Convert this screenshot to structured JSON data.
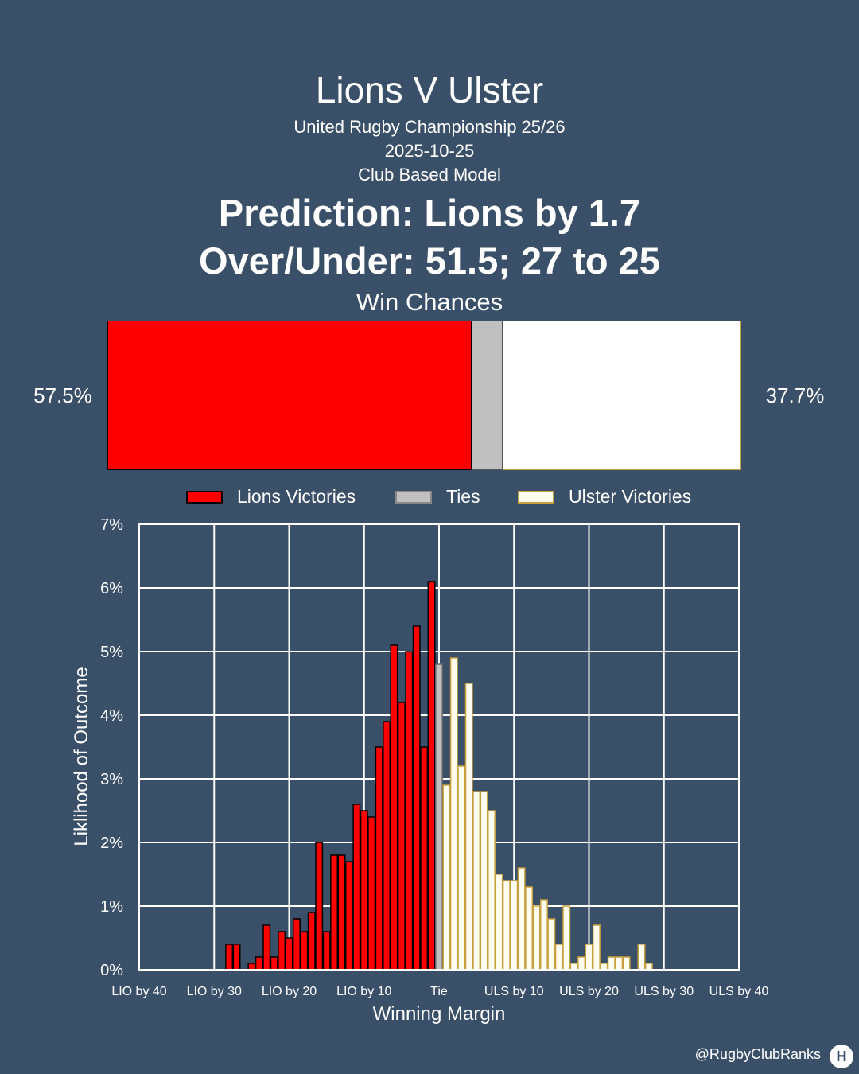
{
  "header": {
    "title": "Lions V Ulster",
    "competition": "United Rugby Championship 25/26",
    "date": "2025-10-25",
    "model": "Club Based Model",
    "prediction": "Prediction: Lions by 1.7",
    "over_under": "Over/Under: 51.5; 27 to 25",
    "win_chances_label": "Win Chances"
  },
  "win_chances": {
    "lions_pct_label": "57.5%",
    "ulster_pct_label": "37.7%",
    "lions": 57.5,
    "ties": 4.8,
    "ulster": 37.7
  },
  "legend": {
    "lions": "Lions Victories",
    "ties": "Ties",
    "ulster": "Ulster Victories"
  },
  "colors": {
    "background": "#3a5068",
    "lions": "#ff0000",
    "ties": "#c0c0c0",
    "ulster": "#fffcf0",
    "ulster_edge": "#c8a040",
    "grid": "#ffffff"
  },
  "credit": "@RugbyClubRanks",
  "logo_glyph": "H",
  "chart_data": {
    "type": "bar",
    "title": "",
    "xlabel": "Winning Margin",
    "ylabel": "Liklihood of Outcome",
    "xlim": [
      -40,
      40
    ],
    "ylim": [
      0,
      7
    ],
    "x_ticks": [
      -40,
      -30,
      -20,
      -10,
      0,
      10,
      20,
      30,
      40
    ],
    "x_tick_labels": [
      "LIO by 40",
      "LIO by 30",
      "LIO by 20",
      "LIO by 10",
      "Tie",
      "ULS by 10",
      "ULS by 20",
      "ULS by 30",
      "ULS by 40"
    ],
    "y_ticks": [
      0,
      1,
      2,
      3,
      4,
      5,
      6,
      7
    ],
    "y_tick_labels": [
      "0%",
      "1%",
      "2%",
      "3%",
      "4%",
      "5%",
      "6%",
      "7%"
    ],
    "grid": true,
    "series": [
      {
        "name": "Lions Victories",
        "x": [
          -28,
          -27,
          -25,
          -24,
          -23,
          -22,
          -21,
          -20,
          -19,
          -18,
          -17,
          -16,
          -15,
          -14,
          -13,
          -12,
          -11,
          -10,
          -9,
          -8,
          -7,
          -6,
          -5,
          -4,
          -3,
          -2,
          -1
        ],
        "values": [
          0.4,
          0.4,
          0.1,
          0.2,
          0.7,
          0.2,
          0.6,
          0.5,
          0.8,
          0.6,
          0.9,
          2.0,
          0.6,
          1.8,
          1.8,
          1.7,
          2.6,
          2.5,
          2.4,
          3.5,
          3.9,
          5.1,
          4.2,
          5.0,
          5.4,
          3.5,
          6.1
        ]
      },
      {
        "name": "Ties",
        "x": [
          0
        ],
        "values": [
          4.8
        ]
      },
      {
        "name": "Ulster Victories",
        "x": [
          1,
          2,
          3,
          4,
          5,
          6,
          7,
          8,
          9,
          10,
          11,
          12,
          13,
          14,
          15,
          16,
          17,
          18,
          19,
          20,
          21,
          22,
          23,
          24,
          25,
          26,
          27,
          28
        ],
        "values": [
          2.9,
          4.9,
          3.2,
          4.5,
          2.8,
          2.8,
          2.5,
          1.5,
          1.4,
          1.4,
          1.6,
          1.3,
          1.0,
          1.1,
          0.8,
          0.4,
          1.0,
          0.1,
          0.2,
          0.4,
          0.7,
          0.1,
          0.2,
          0.2,
          0.2,
          0.0,
          0.4,
          0.1
        ]
      }
    ]
  }
}
